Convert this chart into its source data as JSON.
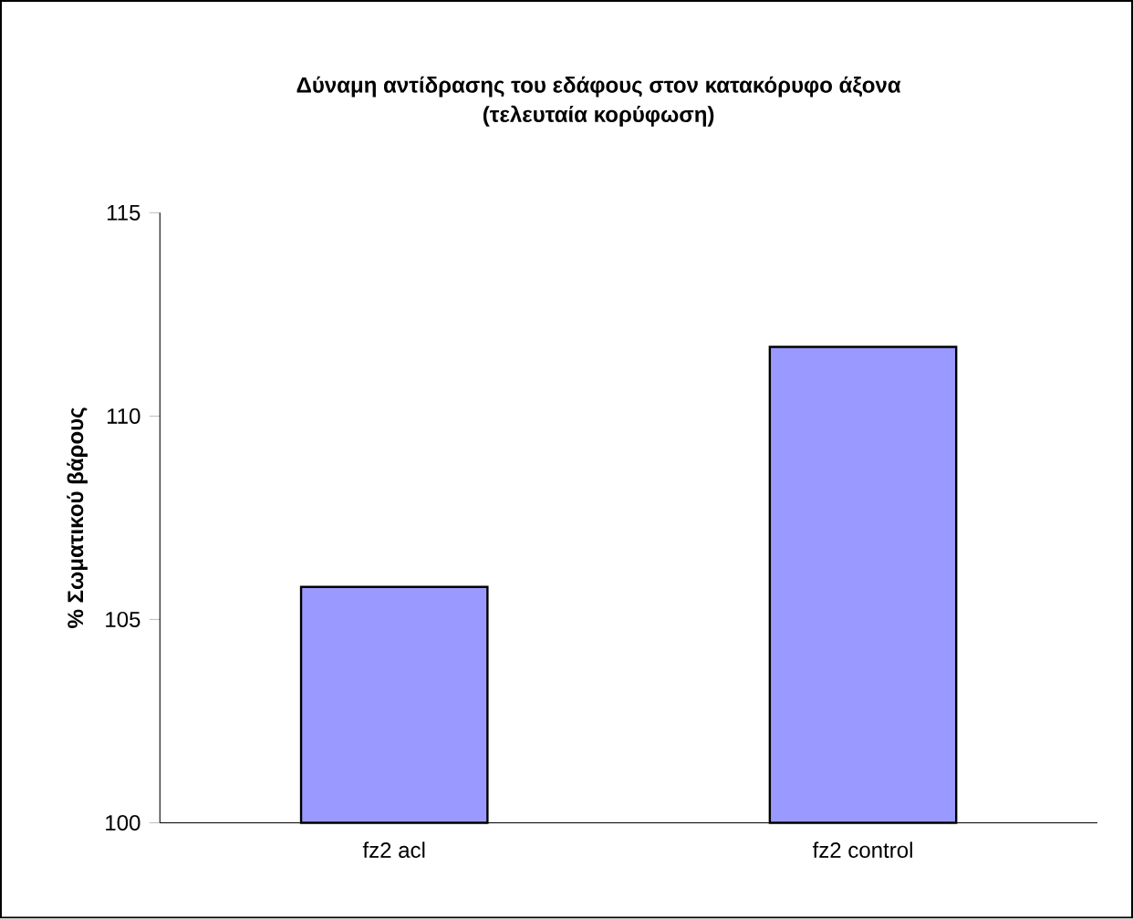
{
  "chart_data": {
    "type": "bar",
    "title": "Δύναμη αντίδρασης του εδάφους στον κατακόρυφο άξονα",
    "subtitle": "(τελευταία  κορύφωση)",
    "ylabel": "% Σωματικού βάρους",
    "categories": [
      "fz2 acl",
      "fz2 control"
    ],
    "values": [
      105.8,
      111.7
    ],
    "color": "#9999ff",
    "ylim": [
      100,
      115
    ],
    "yticks": [
      100,
      105,
      110,
      115
    ]
  }
}
